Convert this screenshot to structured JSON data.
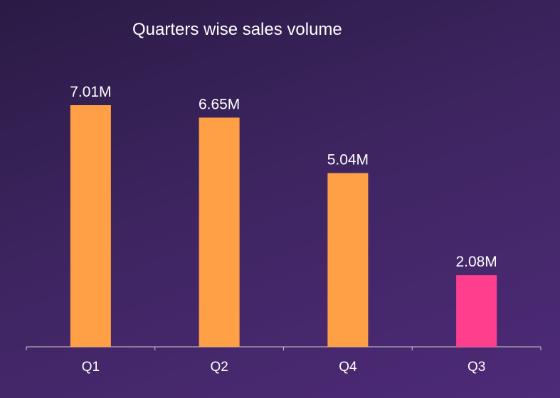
{
  "chart_data": {
    "type": "bar",
    "title": "Quarters wise sales volume",
    "categories": [
      "Q1",
      "Q2",
      "Q4",
      "Q3"
    ],
    "values": [
      7.01,
      6.65,
      5.04,
      2.08
    ],
    "data_labels": [
      "7.01M",
      "6.65M",
      "5.04M",
      "2.08M"
    ],
    "unit": "M",
    "ylim": [
      0,
      7.01
    ],
    "grid": false,
    "legend": "none",
    "colors": {
      "bar": "#ffa047",
      "highlight": "#ff3f8e",
      "axis": "#cccccc",
      "text": "#ffffff"
    },
    "highlight_index": 3
  }
}
